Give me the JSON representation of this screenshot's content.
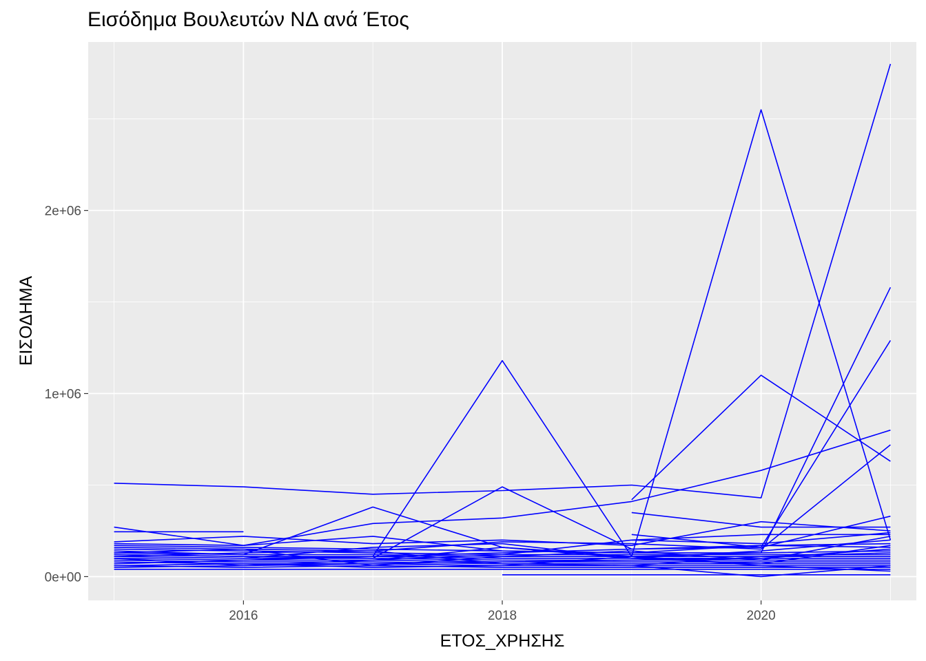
{
  "chart_data": {
    "type": "line",
    "title": "Εισόδημα Βουλευτών ΝΔ ανά Έτος",
    "xlabel": "ΕΤΟΣ_ΧΡΗΣΗΣ",
    "ylabel": "ΕΙΣΟΔΗΜΑ",
    "xlim": [
      2014.8,
      2021.2
    ],
    "ylim": [
      -130000,
      2920000
    ],
    "x_ticks": [
      {
        "value": 2016,
        "label": "2016"
      },
      {
        "value": 2018,
        "label": "2018"
      },
      {
        "value": 2020,
        "label": "2020"
      }
    ],
    "y_ticks": [
      {
        "value": 0,
        "label": "0e+00"
      },
      {
        "value": 1000000,
        "label": "1e+06"
      },
      {
        "value": 2000000,
        "label": "2e+06"
      }
    ],
    "grid": true,
    "line_color": "#0000ff",
    "panel_color": "#ebebeb",
    "series": [
      {
        "x": [
          2015,
          2016,
          2017,
          2018,
          2019,
          2020,
          2021
        ],
        "y": [
          510000,
          490000,
          450000,
          470000,
          500000,
          430000,
          2800000
        ]
      },
      {
        "x": [
          2017,
          2018,
          2019,
          2020,
          2021
        ],
        "y": [
          110000,
          1180000,
          110000,
          2550000,
          200000
        ]
      },
      {
        "x": [
          2019,
          2020,
          2021
        ],
        "y": [
          420000,
          1100000,
          630000
        ]
      },
      {
        "x": [
          2015,
          2016,
          2017,
          2018,
          2019,
          2020,
          2021
        ],
        "y": [
          180000,
          170000,
          290000,
          320000,
          410000,
          580000,
          800000
        ]
      },
      {
        "x": [
          2015,
          2016,
          2017,
          2018,
          2019,
          2020,
          2021
        ],
        "y": [
          140000,
          120000,
          380000,
          160000,
          110000,
          130000,
          1580000
        ]
      },
      {
        "x": [
          2015,
          2016,
          2017,
          2018,
          2019,
          2020,
          2021
        ],
        "y": [
          120000,
          110000,
          100000,
          490000,
          150000,
          160000,
          1290000
        ]
      },
      {
        "x": [
          2015,
          2016,
          2017,
          2018,
          2019,
          2020,
          2021
        ],
        "y": [
          160000,
          150000,
          140000,
          190000,
          180000,
          150000,
          720000
        ]
      },
      {
        "x": [
          2015,
          2016
        ],
        "y": [
          245000,
          245000
        ]
      },
      {
        "x": [
          2015,
          2016,
          2017,
          2018,
          2019,
          2020,
          2021
        ],
        "y": [
          270000,
          170000,
          220000,
          140000,
          130000,
          170000,
          180000
        ]
      },
      {
        "x": [
          2015,
          2016,
          2017,
          2018,
          2019,
          2020,
          2021
        ],
        "y": [
          190000,
          220000,
          180000,
          200000,
          170000,
          300000,
          250000
        ]
      },
      {
        "x": [
          2019,
          2020,
          2021
        ],
        "y": [
          350000,
          270000,
          270000
        ]
      },
      {
        "x": [
          2019,
          2020,
          2021
        ],
        "y": [
          230000,
          160000,
          330000
        ]
      },
      {
        "x": [
          2019,
          2020,
          2021
        ],
        "y": [
          200000,
          230000,
          230000
        ]
      },
      {
        "x": [
          2018,
          2019,
          2020,
          2021
        ],
        "y": [
          10000,
          10000,
          10000,
          10000
        ]
      },
      {
        "x": [
          2019,
          2020,
          2021
        ],
        "y": [
          60000,
          0,
          60000
        ]
      },
      {
        "x": [
          2015,
          2016,
          2017,
          2018,
          2019,
          2020,
          2021
        ],
        "y": [
          40000,
          40000,
          40000,
          40000,
          40000,
          40000,
          40000
        ]
      },
      {
        "x": [
          2015,
          2016,
          2017,
          2018,
          2019,
          2020,
          2021
        ],
        "y": [
          60000,
          50000,
          60000,
          50000,
          50000,
          50000,
          50000
        ]
      },
      {
        "x": [
          2015,
          2016,
          2017,
          2018,
          2019,
          2020,
          2021
        ],
        "y": [
          80000,
          70000,
          70000,
          60000,
          60000,
          60000,
          60000
        ]
      },
      {
        "x": [
          2015,
          2016,
          2017,
          2018,
          2019,
          2020,
          2021
        ],
        "y": [
          90000,
          80000,
          80000,
          70000,
          70000,
          70000,
          70000
        ]
      },
      {
        "x": [
          2015,
          2016,
          2017,
          2018,
          2019,
          2020,
          2021
        ],
        "y": [
          100000,
          90000,
          90000,
          80000,
          80000,
          80000,
          80000
        ]
      },
      {
        "x": [
          2015,
          2016,
          2017,
          2018,
          2019,
          2020,
          2021
        ],
        "y": [
          110000,
          100000,
          100000,
          90000,
          90000,
          90000,
          90000
        ]
      },
      {
        "x": [
          2015,
          2016,
          2017,
          2018,
          2019,
          2020,
          2021
        ],
        "y": [
          120000,
          110000,
          110000,
          100000,
          100000,
          100000,
          100000
        ]
      },
      {
        "x": [
          2015,
          2016,
          2017,
          2018,
          2019,
          2020,
          2021
        ],
        "y": [
          130000,
          120000,
          120000,
          110000,
          110000,
          110000,
          110000
        ]
      },
      {
        "x": [
          2015,
          2016,
          2017,
          2018,
          2019,
          2020,
          2021
        ],
        "y": [
          150000,
          140000,
          130000,
          120000,
          120000,
          120000,
          120000
        ]
      },
      {
        "x": [
          2015,
          2016,
          2017,
          2018,
          2019,
          2020,
          2021
        ],
        "y": [
          170000,
          160000,
          150000,
          140000,
          130000,
          130000,
          140000
        ]
      },
      {
        "x": [
          2015,
          2016,
          2017,
          2018,
          2019,
          2020,
          2021
        ],
        "y": [
          50000,
          60000,
          70000,
          80000,
          90000,
          100000,
          150000
        ]
      },
      {
        "x": [
          2015,
          2016,
          2017,
          2018,
          2019,
          2020,
          2021
        ],
        "y": [
          70000,
          90000,
          110000,
          130000,
          150000,
          170000,
          160000
        ]
      },
      {
        "x": [
          2015,
          2016,
          2017,
          2018,
          2019,
          2020,
          2021
        ],
        "y": [
          100000,
          60000,
          90000,
          160000,
          100000,
          140000,
          200000
        ]
      },
      {
        "x": [
          2015,
          2016,
          2017,
          2018,
          2019,
          2020,
          2021
        ],
        "y": [
          130000,
          150000,
          60000,
          110000,
          140000,
          90000,
          220000
        ]
      },
      {
        "x": [
          2015,
          2016,
          2017,
          2018,
          2019,
          2020,
          2021
        ],
        "y": [
          110000,
          130000,
          140000,
          70000,
          60000,
          110000,
          130000
        ]
      },
      {
        "x": [
          2015,
          2016,
          2017,
          2018,
          2019,
          2020,
          2021
        ],
        "y": [
          60000,
          70000,
          50000,
          60000,
          110000,
          60000,
          30000
        ]
      },
      {
        "x": [
          2016,
          2017,
          2018,
          2019,
          2020,
          2021
        ],
        "y": [
          100000,
          160000,
          180000,
          100000,
          70000,
          170000
        ]
      },
      {
        "x": [
          2017,
          2018,
          2019,
          2020,
          2021
        ],
        "y": [
          90000,
          120000,
          200000,
          180000,
          240000
        ]
      }
    ]
  }
}
